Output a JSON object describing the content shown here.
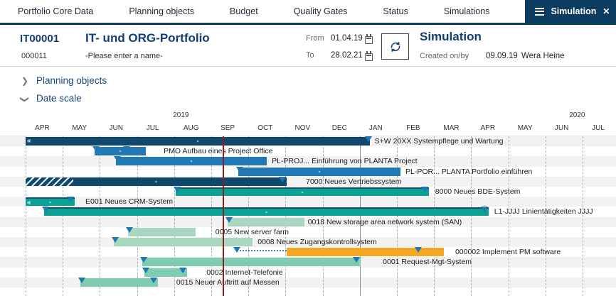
{
  "nav": {
    "items": [
      "Portfolio Core Data",
      "Planning objects",
      "Budget",
      "Quality Gates",
      "Status",
      "Simulations"
    ],
    "active_tab": "Simulation"
  },
  "header": {
    "portfolio_id": "IT00001",
    "portfolio_name": "IT- und ORG-Portfolio",
    "sub_id": "000011",
    "name_placeholder": "-Please enter a name-",
    "from_label": "From",
    "from_value": "01.04.19",
    "to_label": "To",
    "to_value": "28.02.21",
    "simulation_title": "Simulation",
    "created_label": "Created on/by",
    "created_date": "09.09.19",
    "created_by": "Wera Heine"
  },
  "sections": {
    "planning_objects": "Planning objects",
    "date_scale": "Date scale"
  },
  "colors": {
    "navy": "#10486e",
    "blue": "#2278b5",
    "teal": "#0ba195",
    "palegreen": "#a9d7bf",
    "green": "#7fccb0",
    "orange": "#f5a623",
    "today_line": "#8e1f1f",
    "accent": "#0d3c61"
  },
  "chart_data": {
    "type": "gantt",
    "timeline": {
      "months": [
        "APR",
        "MAY",
        "JUN",
        "JUL",
        "AUG",
        "SEP",
        "OCT",
        "NOV",
        "DEC",
        "JAN",
        "FEB",
        "MAR",
        "APR",
        "MAY",
        "JUN",
        "JUL"
      ],
      "years": [
        {
          "label": "2019",
          "month_offset": 4.2
        },
        {
          "label": "2020",
          "month_offset": 14.87
        }
      ],
      "year_divider_index": 9
    },
    "today_month_offset": 5.31,
    "bars": [
      {
        "name": "S+W 20XX Systempflege und Wartung",
        "row": 0,
        "start": 0,
        "end": 9.27,
        "color": "navy",
        "pattern": "dots",
        "left_arrow": true,
        "markers": [
          9.23
        ],
        "label_at": 9.4
      },
      {
        "name": "PMO Aufbau eines Project Office",
        "row": 1,
        "start": 1.86,
        "end": 3.24,
        "color": "blue",
        "pattern": "dots",
        "markers": [
          1.9,
          2.72
        ],
        "label_at": 3.72
      },
      {
        "name": "PL-PROJ... Einführung von PLANTA Project",
        "row": 2,
        "start": 2.43,
        "end": 6.49,
        "color": "blue",
        "pattern": "dots",
        "markers": [
          2.47
        ],
        "label_at": 6.63
      },
      {
        "name": "PL-POR... PLANTA Portfolio einführen",
        "row": 3,
        "start": 5.73,
        "end": 10.1,
        "color": "blue",
        "pattern": "dots",
        "markers": [
          5.77
        ],
        "label_at": 10.23
      },
      {
        "name": "7000 Neues Vertriebssystem",
        "row": 4,
        "start": 0,
        "end": 7.03,
        "color": "navy",
        "pattern": "dots",
        "hatch_until": 1.28,
        "markers": [
          6.92
        ],
        "label_at": 7.55
      },
      {
        "name": "8000 Neues BDE-System",
        "row": 5,
        "start": 4.04,
        "end": 10.86,
        "color": "teal",
        "pattern": "dots",
        "markers": [
          4.08,
          10.75
        ],
        "label_at": 11.03
      },
      {
        "name": "E001 Neues CRM-System",
        "row": 6,
        "start": 0,
        "end": 1.32,
        "color": "teal",
        "pattern": "dots",
        "left_arrow": true,
        "markers": [
          1.21
        ],
        "label_at": 1.61
      },
      {
        "name": "L1-JJJJ Linientätigkeiten JJJJ",
        "row": 7,
        "start": 0.5,
        "end": 12.47,
        "color": "teal",
        "pattern": "dots",
        "markers": [
          0.54,
          12.36
        ],
        "label_at": 12.62
      },
      {
        "name": "0018 New storage area network system (SAN)",
        "row": 8,
        "start": 5.44,
        "end": 7.51,
        "color": "palegreen",
        "pattern": "dots-top",
        "markers": [
          5.48
        ],
        "label_at": 7.6
      },
      {
        "name": "0005 New server farm",
        "row": 9,
        "start": 2.76,
        "end": 4.58,
        "color": "palegreen",
        "pattern": "dots-top",
        "markers": [
          2.8
        ],
        "label_at": 5.11
      },
      {
        "name": "0008 Neues Zugangskontrollsystem",
        "row": 10,
        "start": 2.38,
        "end": 6.11,
        "color": "palegreen",
        "pattern": "dots-top",
        "markers": [
          2.42
        ],
        "label_at": 6.25
      },
      {
        "name": "000002 Implement PM software",
        "row": 11,
        "start": 7.03,
        "end": 11.26,
        "color": "orange",
        "pattern": "dots-top",
        "leader_from": 5.69,
        "markers": [
          5.69,
          10.57
        ],
        "label_at": 11.57
      },
      {
        "name": "0001 Request-Mgt-System",
        "row": 12,
        "start": 3.14,
        "end": 9.02,
        "color": "green",
        "pattern": "none",
        "markers": [
          3.18,
          8.91
        ],
        "label_at": 9.62
      },
      {
        "name": "0002 Internet-Telefonie",
        "row": 13,
        "start": 3.2,
        "end": 4.35,
        "color": "green",
        "pattern": "none",
        "markers": [
          3.24,
          4.23
        ],
        "label_at": 4.87
      },
      {
        "name": "0015 Neuer Auftritt auf Messen",
        "row": 14,
        "start": 1.47,
        "end": 3.56,
        "color": "green",
        "pattern": "none",
        "markers": [
          1.51,
          3.45
        ],
        "label_at": 4.06
      }
    ]
  }
}
